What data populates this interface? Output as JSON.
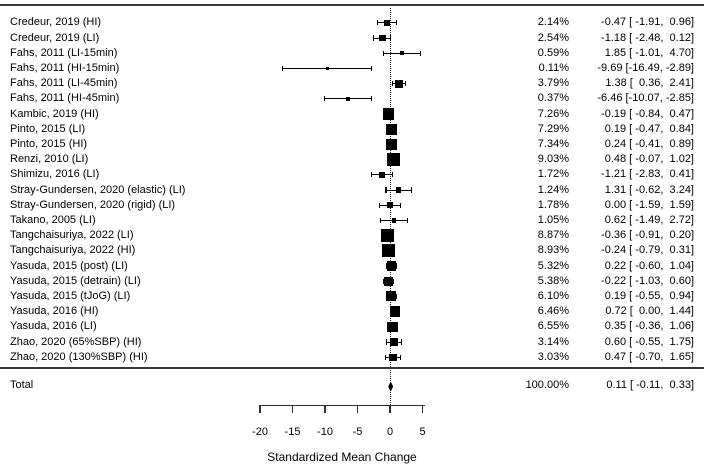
{
  "figure": {
    "total_label": "Total"
  },
  "chart_data": {
    "type": "scatter",
    "subtype": "forest_plot_meta_analysis",
    "xlabel": "Standardized Mean Change",
    "xlim": [
      -20,
      5
    ],
    "x_ticks": [
      -20,
      -15,
      -10,
      -5,
      0,
      5
    ],
    "reference_line_x": 0,
    "legend_position": "none",
    "grid": false,
    "marker_color": "#000000",
    "studies": [
      {
        "label": "Credeur, 2019 (HI)",
        "weight": "2.14%",
        "est": -0.47,
        "lo": -1.91,
        "hi": 0.96,
        "ci": "-0.47 [ -1.91,  0.96]"
      },
      {
        "label": "Credeur, 2019 (LI)",
        "weight": "2.54%",
        "est": -1.18,
        "lo": -2.48,
        "hi": 0.12,
        "ci": "-1.18 [ -2.48,  0.12]"
      },
      {
        "label": "Fahs, 2011 (LI-15min)",
        "weight": "0.59%",
        "est": 1.85,
        "lo": -1.01,
        "hi": 4.7,
        "ci": "1.85 [ -1.01,  4.70]"
      },
      {
        "label": "Fahs, 2011 (HI-15min)",
        "weight": "0.11%",
        "est": -9.69,
        "lo": -16.49,
        "hi": -2.89,
        "ci": "-9.69 [-16.49, -2.89]"
      },
      {
        "label": "Fahs, 2011 (LI-45min)",
        "weight": "3.79%",
        "est": 1.38,
        "lo": 0.36,
        "hi": 2.41,
        "ci": "1.38 [  0.36,  2.41]"
      },
      {
        "label": "Fahs, 2011 (HI-45min)",
        "weight": "0.37%",
        "est": -6.46,
        "lo": -10.07,
        "hi": -2.85,
        "ci": "-6.46 [-10.07, -2.85]"
      },
      {
        "label": "Kambic, 2019 (HI)",
        "weight": "7.26%",
        "est": -0.19,
        "lo": -0.84,
        "hi": 0.47,
        "ci": "-0.19 [ -0.84,  0.47]"
      },
      {
        "label": "Pinto, 2015 (LI)",
        "weight": "7.29%",
        "est": 0.19,
        "lo": -0.47,
        "hi": 0.84,
        "ci": "0.19 [ -0.47,  0.84]"
      },
      {
        "label": "Pinto, 2015 (HI)",
        "weight": "7.34%",
        "est": 0.24,
        "lo": -0.41,
        "hi": 0.89,
        "ci": "0.24 [ -0.41,  0.89]"
      },
      {
        "label": "Renzi, 2010 (LI)",
        "weight": "9.03%",
        "est": 0.48,
        "lo": -0.07,
        "hi": 1.02,
        "ci": "0.48 [ -0.07,  1.02]"
      },
      {
        "label": "Shimizu, 2016 (LI)",
        "weight": "1.72%",
        "est": -1.21,
        "lo": -2.83,
        "hi": 0.41,
        "ci": "-1.21 [ -2.83,  0.41]"
      },
      {
        "label": "Stray-Gundersen, 2020 (elastic) (LI)",
        "weight": "1.24%",
        "est": 1.31,
        "lo": -0.62,
        "hi": 3.24,
        "ci": "1.31 [ -0.62,  3.24]"
      },
      {
        "label": "Stray-Gundersen, 2020 (rigid) (LI)",
        "weight": "1.78%",
        "est": 0.0,
        "lo": -1.59,
        "hi": 1.59,
        "ci": "0.00 [ -1.59,  1.59]"
      },
      {
        "label": "Takano, 2005 (LI)",
        "weight": "1.05%",
        "est": 0.62,
        "lo": -1.49,
        "hi": 2.72,
        "ci": "0.62 [ -1.49,  2.72]"
      },
      {
        "label": "Tangchaisuriya, 2022 (LI)",
        "weight": "8.87%",
        "est": -0.36,
        "lo": -0.91,
        "hi": 0.2,
        "ci": "-0.36 [ -0.91,  0.20]"
      },
      {
        "label": "Tangchaisuriya, 2022 (HI)",
        "weight": "8.93%",
        "est": -0.24,
        "lo": -0.79,
        "hi": 0.31,
        "ci": "-0.24 [ -0.79,  0.31]"
      },
      {
        "label": "Yasuda, 2015 (post) (LI)",
        "weight": "5.32%",
        "est": 0.22,
        "lo": -0.6,
        "hi": 1.04,
        "ci": "0.22 [ -0.60,  1.04]"
      },
      {
        "label": "Yasuda, 2015 (detrain) (LI)",
        "weight": "5.38%",
        "est": -0.22,
        "lo": -1.03,
        "hi": 0.6,
        "ci": "-0.22 [ -1.03,  0.60]"
      },
      {
        "label": "Yasuda, 2015 (tJoG) (LI)",
        "weight": "6.10%",
        "est": 0.19,
        "lo": -0.55,
        "hi": 0.94,
        "ci": "0.19 [ -0.55,  0.94]"
      },
      {
        "label": "Yasuda, 2016 (HI)",
        "weight": "6.46%",
        "est": 0.72,
        "lo": 0.0,
        "hi": 1.44,
        "ci": "0.72 [  0.00,  1.44]"
      },
      {
        "label": "Yasuda, 2016 (LI)",
        "weight": "6.55%",
        "est": 0.35,
        "lo": -0.36,
        "hi": 1.06,
        "ci": "0.35 [ -0.36,  1.06]"
      },
      {
        "label": "Zhao, 2020 (65%SBP) (HI)",
        "weight": "3.14%",
        "est": 0.6,
        "lo": -0.55,
        "hi": 1.75,
        "ci": "0.60 [ -0.55,  1.75]"
      },
      {
        "label": "Zhao, 2020 (130%SBP) (HI)",
        "weight": "3.03%",
        "est": 0.47,
        "lo": -0.7,
        "hi": 1.65,
        "ci": "0.47 [ -0.70,  1.65]"
      }
    ],
    "total": {
      "label": "Total",
      "weight": "100.00%",
      "est": 0.11,
      "lo": -0.11,
      "hi": 0.33,
      "ci": "0.11 [ -0.11,  0.33]"
    }
  }
}
